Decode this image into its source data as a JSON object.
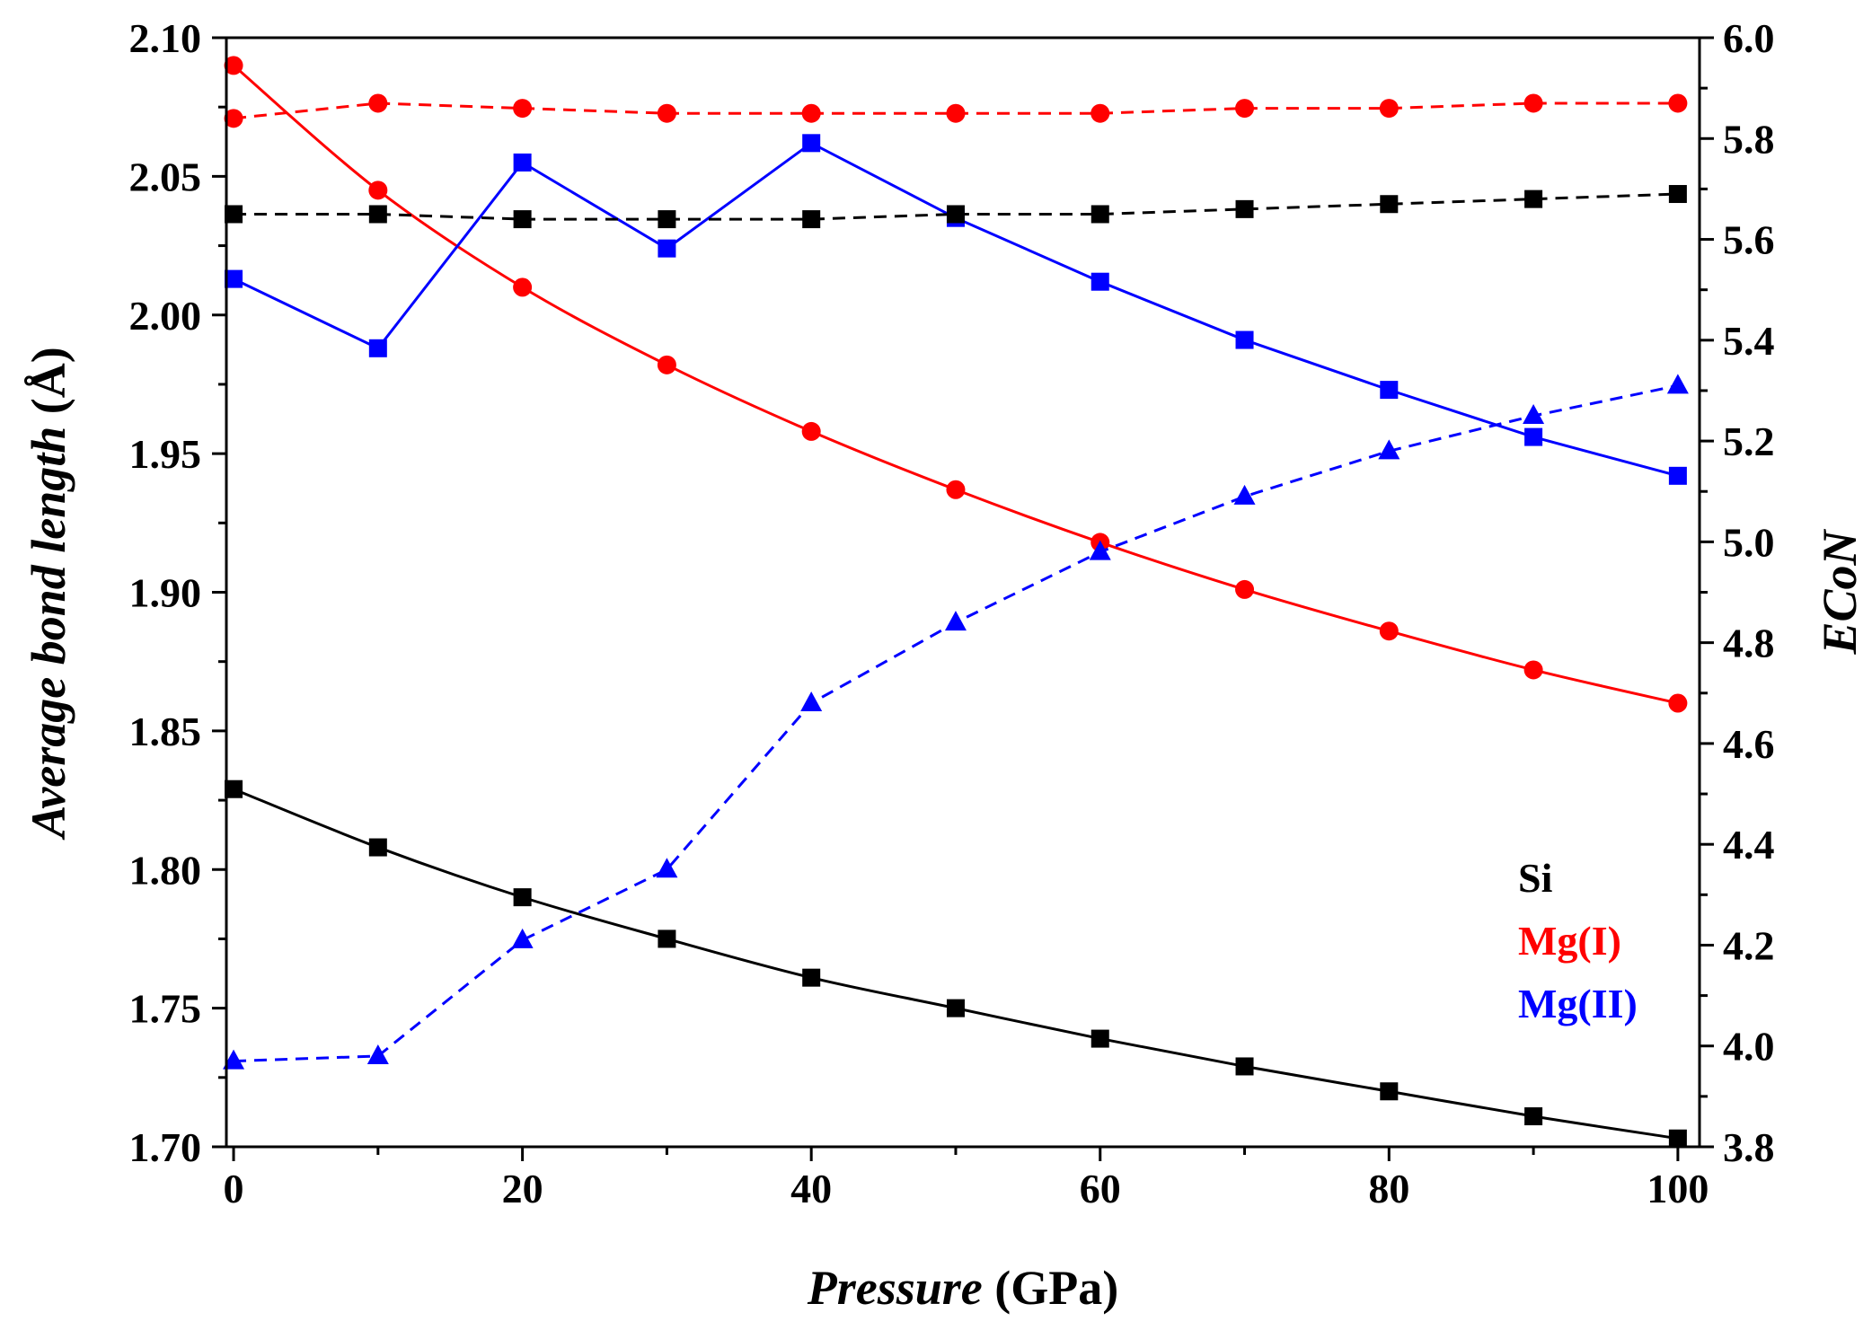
{
  "chart_data": {
    "type": "line",
    "xlabel": {
      "italic": "Pressure",
      "plain": " (GPa)"
    },
    "ylabel_left": {
      "italic": "Average bond length",
      "plain": " (Å)"
    },
    "ylabel_right": "ECoN",
    "x": [
      0,
      10,
      20,
      30,
      40,
      50,
      60,
      70,
      80,
      90,
      100
    ],
    "xlim": [
      -0.5,
      101.5
    ],
    "xticks": [
      "0",
      "20",
      "40",
      "60",
      "80",
      "100"
    ],
    "ylim_left": [
      1.7,
      2.1
    ],
    "yticks_left": [
      "1.70",
      "1.75",
      "1.80",
      "1.85",
      "1.90",
      "1.95",
      "2.00",
      "2.05",
      "2.10"
    ],
    "ylim_right": [
      3.8,
      6.0
    ],
    "yticks_right": [
      "3.8",
      "4.0",
      "4.2",
      "4.4",
      "4.6",
      "4.8",
      "5.0",
      "5.2",
      "5.4",
      "5.6",
      "5.8",
      "6.0"
    ],
    "series": [
      {
        "name": "Si",
        "quantity": "bond length",
        "axis": "left",
        "color": "#000000",
        "marker": "square",
        "line": "solid",
        "values": [
          1.829,
          1.808,
          1.79,
          1.775,
          1.761,
          1.75,
          1.739,
          1.729,
          1.72,
          1.711,
          1.703
        ]
      },
      {
        "name": "Mg(I)",
        "quantity": "bond length",
        "axis": "left",
        "color": "#ff0000",
        "marker": "circle",
        "line": "solid",
        "values": [
          2.09,
          2.045,
          2.01,
          1.982,
          1.958,
          1.937,
          1.918,
          1.901,
          1.886,
          1.872,
          1.86
        ]
      },
      {
        "name": "Mg(II)",
        "quantity": "bond length",
        "axis": "left",
        "color": "#0000ff",
        "marker": "square",
        "line": "solid",
        "values": [
          2.013,
          1.988,
          2.055,
          2.024,
          2.062,
          2.035,
          2.012,
          1.991,
          1.973,
          1.956,
          1.942
        ]
      },
      {
        "name": "Si",
        "quantity": "ECoN",
        "axis": "right",
        "color": "#000000",
        "marker": "square",
        "line": "dashed",
        "values": [
          5.65,
          5.65,
          5.64,
          5.64,
          5.64,
          5.65,
          5.65,
          5.66,
          5.67,
          5.68,
          5.69
        ]
      },
      {
        "name": "Mg(I)",
        "quantity": "ECoN",
        "axis": "right",
        "color": "#ff0000",
        "marker": "circle",
        "line": "dashed",
        "values": [
          5.84,
          5.87,
          5.86,
          5.85,
          5.85,
          5.85,
          5.85,
          5.86,
          5.86,
          5.87,
          5.87
        ]
      },
      {
        "name": "Mg(II)",
        "quantity": "ECoN",
        "axis": "right",
        "color": "#0000ff",
        "marker": "triangle",
        "line": "dashed",
        "values": [
          3.97,
          3.98,
          4.21,
          4.35,
          4.68,
          4.84,
          4.98,
          5.09,
          5.18,
          5.25,
          5.31
        ]
      }
    ],
    "legend": {
      "position": "bottom-right",
      "entries": [
        {
          "label": "Si",
          "color": "#000000"
        },
        {
          "label": "Mg(I)",
          "color": "#ff0000"
        },
        {
          "label": "Mg(II)",
          "color": "#0000ff"
        }
      ]
    }
  }
}
